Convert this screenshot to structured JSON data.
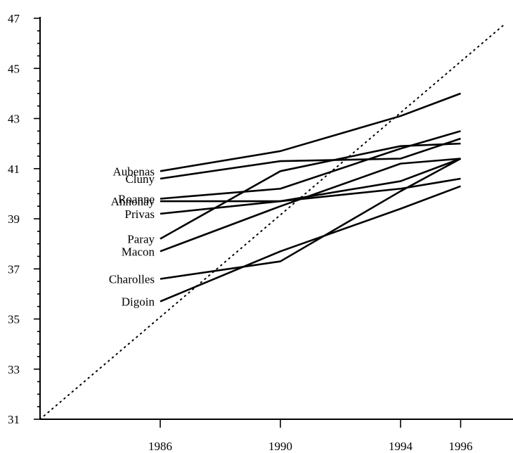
{
  "chart_data": {
    "type": "line",
    "title": "",
    "xlabel": "",
    "ylabel": "",
    "xlim": [
      1982,
      1997.5
    ],
    "ylim": [
      31,
      47
    ],
    "x_ticks": [
      1986,
      1990,
      1994,
      1996
    ],
    "x_tick_labels": [
      "1986",
      "1990",
      "1994",
      "1996"
    ],
    "y_ticks": [
      31,
      33,
      35,
      37,
      39,
      41,
      43,
      45,
      47
    ],
    "y_tick_labels": [
      "31",
      "33",
      "35",
      "37",
      "39",
      "41",
      "43",
      "45",
      "47"
    ],
    "y_minor_step": 0.5,
    "grid": false,
    "legend": "none",
    "reference_line": {
      "style": "dotted",
      "points": [
        [
          1982,
          31
        ],
        [
          1997.5,
          46.8
        ]
      ]
    },
    "series": [
      {
        "name": "Aubenas",
        "x": [
          1986,
          1990,
          1994,
          1996
        ],
        "y": [
          40.9,
          41.7,
          43.1,
          44.0
        ]
      },
      {
        "name": "Cluny",
        "x": [
          1986,
          1990,
          1994,
          1996
        ],
        "y": [
          40.6,
          41.3,
          41.4,
          42.2
        ]
      },
      {
        "name": "Roanne",
        "x": [
          1986,
          1990,
          1994,
          1996
        ],
        "y": [
          39.8,
          40.2,
          41.8,
          42.5
        ]
      },
      {
        "name": "Annonay",
        "x": [
          1986,
          1990,
          1994,
          1996
        ],
        "y": [
          39.7,
          39.7,
          40.2,
          40.6
        ]
      },
      {
        "name": "Privas",
        "x": [
          1986,
          1990,
          1994,
          1996
        ],
        "y": [
          39.2,
          39.7,
          40.5,
          41.4
        ]
      },
      {
        "name": "Paray",
        "x": [
          1986,
          1990,
          1994,
          1996
        ],
        "y": [
          38.2,
          40.9,
          41.9,
          42.0
        ]
      },
      {
        "name": "Macon",
        "x": [
          1986,
          1990,
          1994,
          1996
        ],
        "y": [
          37.7,
          39.5,
          41.2,
          41.4
        ]
      },
      {
        "name": "Charolles",
        "x": [
          1986,
          1990,
          1994,
          1996
        ],
        "y": [
          36.6,
          37.3,
          40.1,
          41.4
        ]
      },
      {
        "name": "Digoin",
        "x": [
          1986,
          1990,
          1994,
          1996
        ],
        "y": [
          35.7,
          37.7,
          39.4,
          40.3
        ]
      }
    ]
  }
}
